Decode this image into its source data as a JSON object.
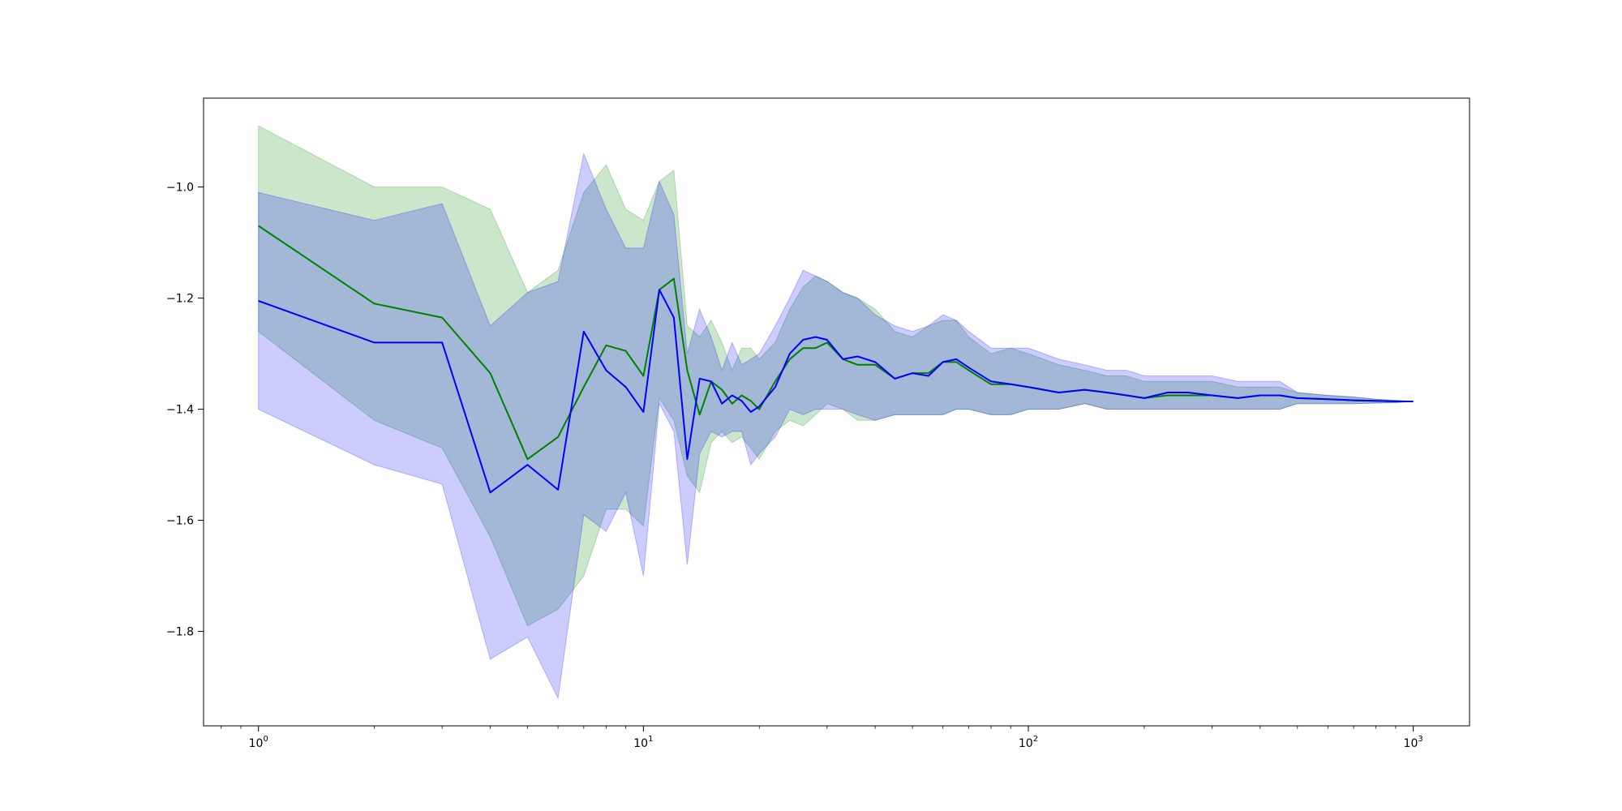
{
  "chart_data": {
    "type": "line",
    "title": "",
    "xlabel": "",
    "ylabel": "",
    "x_scale": "log",
    "xlim": [
      0.72,
      1400
    ],
    "ylim": [
      -1.97,
      -0.84
    ],
    "grid": false,
    "legend": "none",
    "x_ticks": [
      {
        "value": 1,
        "base": "10",
        "exp": "0"
      },
      {
        "value": 10,
        "base": "10",
        "exp": "1"
      },
      {
        "value": 100,
        "base": "10",
        "exp": "2"
      },
      {
        "value": 1000,
        "base": "10",
        "exp": "3"
      }
    ],
    "y_ticks": [
      {
        "value": -1.8,
        "label": "−1.8"
      },
      {
        "value": -1.6,
        "label": "−1.6"
      },
      {
        "value": -1.4,
        "label": "−1.4"
      },
      {
        "value": -1.2,
        "label": "−1.2"
      },
      {
        "value": -1.0,
        "label": "−1.0"
      }
    ],
    "series": [
      {
        "color": "#008000",
        "band_color": "#008000",
        "band_opacity": 0.2,
        "x": [
          1,
          2,
          3,
          4,
          5,
          6,
          7,
          8,
          9,
          10,
          11,
          12,
          13,
          14,
          15,
          16,
          17,
          18,
          19,
          20,
          22,
          24,
          26,
          28,
          30,
          33,
          36,
          40,
          45,
          50,
          55,
          60,
          65,
          70,
          80,
          90,
          100,
          120,
          140,
          160,
          180,
          200,
          230,
          260,
          300,
          350,
          400,
          450,
          500,
          600,
          700,
          800,
          900,
          1000
        ],
        "y": [
          -1.07,
          -1.21,
          -1.235,
          -1.335,
          -1.49,
          -1.45,
          -1.36,
          -1.285,
          -1.295,
          -1.34,
          -1.185,
          -1.165,
          -1.33,
          -1.41,
          -1.35,
          -1.365,
          -1.39,
          -1.375,
          -1.385,
          -1.4,
          -1.35,
          -1.31,
          -1.29,
          -1.29,
          -1.28,
          -1.31,
          -1.32,
          -1.32,
          -1.345,
          -1.335,
          -1.335,
          -1.315,
          -1.315,
          -1.33,
          -1.355,
          -1.355,
          -1.36,
          -1.37,
          -1.365,
          -1.37,
          -1.375,
          -1.38,
          -1.375,
          -1.375,
          -1.375,
          -1.38,
          -1.375,
          -1.375,
          -1.38,
          -1.382,
          -1.384,
          -1.385,
          -1.386,
          -1.386
        ],
        "upper": [
          -0.89,
          -1.0,
          -1.0,
          -1.04,
          -1.19,
          -1.15,
          -1.01,
          -0.96,
          -1.04,
          -1.06,
          -0.99,
          -0.97,
          -1.25,
          -1.27,
          -1.24,
          -1.28,
          -1.33,
          -1.29,
          -1.29,
          -1.31,
          -1.28,
          -1.22,
          -1.18,
          -1.16,
          -1.17,
          -1.19,
          -1.2,
          -1.22,
          -1.26,
          -1.27,
          -1.25,
          -1.24,
          -1.24,
          -1.27,
          -1.3,
          -1.29,
          -1.3,
          -1.32,
          -1.33,
          -1.34,
          -1.34,
          -1.35,
          -1.35,
          -1.35,
          -1.35,
          -1.36,
          -1.36,
          -1.36,
          -1.37,
          -1.375,
          -1.378,
          -1.382,
          -1.384,
          -1.386
        ],
        "lower": [
          -1.26,
          -1.42,
          -1.47,
          -1.63,
          -1.79,
          -1.76,
          -1.7,
          -1.58,
          -1.58,
          -1.61,
          -1.38,
          -1.42,
          -1.52,
          -1.55,
          -1.46,
          -1.44,
          -1.46,
          -1.45,
          -1.47,
          -1.49,
          -1.44,
          -1.42,
          -1.43,
          -1.41,
          -1.39,
          -1.4,
          -1.42,
          -1.42,
          -1.41,
          -1.41,
          -1.41,
          -1.41,
          -1.4,
          -1.4,
          -1.41,
          -1.41,
          -1.4,
          -1.4,
          -1.39,
          -1.4,
          -1.4,
          -1.4,
          -1.4,
          -1.4,
          -1.4,
          -1.4,
          -1.4,
          -1.4,
          -1.39,
          -1.39,
          -1.39,
          -1.389,
          -1.388,
          -1.386
        ]
      },
      {
        "color": "#0000ff",
        "band_color": "#0000ff",
        "band_opacity": 0.2,
        "x": [
          1,
          2,
          3,
          4,
          5,
          6,
          7,
          8,
          9,
          10,
          11,
          12,
          13,
          14,
          15,
          16,
          17,
          18,
          19,
          20,
          22,
          24,
          26,
          28,
          30,
          33,
          36,
          40,
          45,
          50,
          55,
          60,
          65,
          70,
          80,
          90,
          100,
          120,
          140,
          160,
          180,
          200,
          230,
          260,
          300,
          350,
          400,
          450,
          500,
          600,
          700,
          800,
          900,
          1000
        ],
        "y": [
          -1.205,
          -1.28,
          -1.28,
          -1.55,
          -1.5,
          -1.545,
          -1.26,
          -1.33,
          -1.36,
          -1.405,
          -1.185,
          -1.235,
          -1.49,
          -1.345,
          -1.35,
          -1.39,
          -1.375,
          -1.385,
          -1.405,
          -1.395,
          -1.36,
          -1.3,
          -1.275,
          -1.27,
          -1.275,
          -1.31,
          -1.305,
          -1.315,
          -1.345,
          -1.335,
          -1.34,
          -1.315,
          -1.31,
          -1.325,
          -1.35,
          -1.355,
          -1.36,
          -1.37,
          -1.365,
          -1.37,
          -1.375,
          -1.38,
          -1.37,
          -1.37,
          -1.375,
          -1.38,
          -1.375,
          -1.375,
          -1.38,
          -1.382,
          -1.384,
          -1.385,
          -1.386,
          -1.386
        ],
        "upper": [
          -1.01,
          -1.06,
          -1.03,
          -1.25,
          -1.19,
          -1.17,
          -0.94,
          -1.04,
          -1.11,
          -1.11,
          -0.99,
          -1.05,
          -1.3,
          -1.22,
          -1.27,
          -1.33,
          -1.28,
          -1.32,
          -1.31,
          -1.3,
          -1.25,
          -1.2,
          -1.15,
          -1.16,
          -1.17,
          -1.19,
          -1.2,
          -1.23,
          -1.25,
          -1.26,
          -1.25,
          -1.23,
          -1.24,
          -1.26,
          -1.29,
          -1.29,
          -1.29,
          -1.31,
          -1.32,
          -1.33,
          -1.33,
          -1.34,
          -1.34,
          -1.34,
          -1.34,
          -1.35,
          -1.35,
          -1.35,
          -1.37,
          -1.375,
          -1.378,
          -1.382,
          -1.384,
          -1.386
        ],
        "lower": [
          -1.4,
          -1.5,
          -1.535,
          -1.85,
          -1.81,
          -1.92,
          -1.59,
          -1.62,
          -1.55,
          -1.7,
          -1.39,
          -1.44,
          -1.68,
          -1.48,
          -1.44,
          -1.45,
          -1.44,
          -1.44,
          -1.5,
          -1.48,
          -1.45,
          -1.4,
          -1.41,
          -1.4,
          -1.4,
          -1.4,
          -1.41,
          -1.42,
          -1.41,
          -1.41,
          -1.41,
          -1.41,
          -1.4,
          -1.4,
          -1.41,
          -1.41,
          -1.4,
          -1.4,
          -1.39,
          -1.4,
          -1.4,
          -1.4,
          -1.4,
          -1.4,
          -1.4,
          -1.4,
          -1.4,
          -1.4,
          -1.39,
          -1.39,
          -1.39,
          -1.389,
          -1.388,
          -1.386
        ]
      }
    ]
  }
}
